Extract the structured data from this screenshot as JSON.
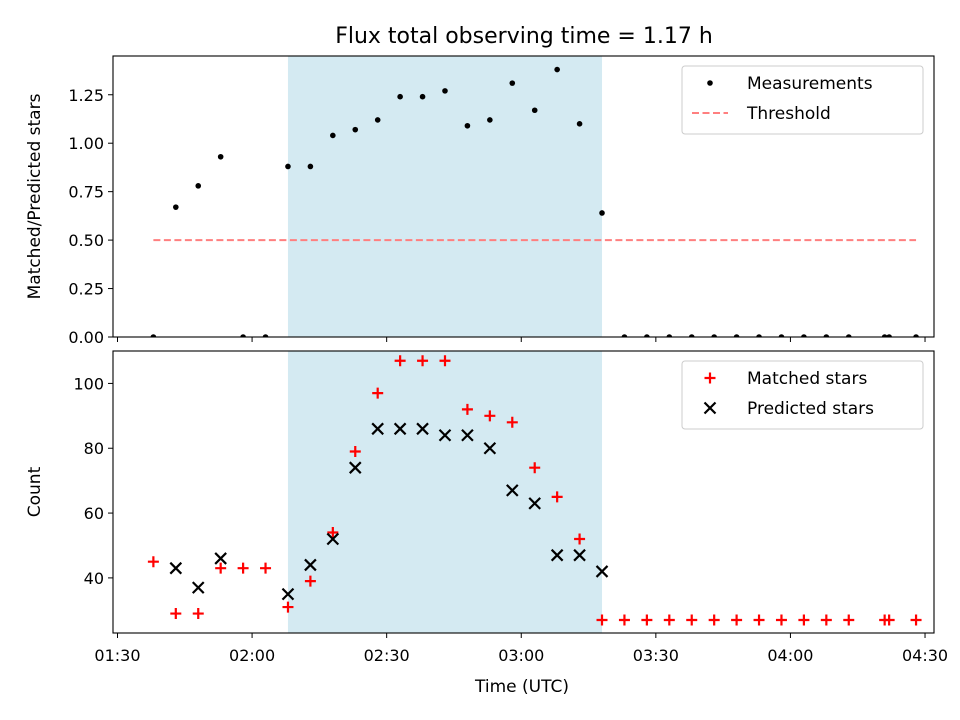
{
  "chart_data": {
    "title": "Flux total observing time = 1.17 h",
    "xlabel": "Time (UTC)",
    "xlim": [
      "01:29",
      "04:32"
    ],
    "x_ticks": [
      "01:30",
      "02:00",
      "02:30",
      "03:00",
      "03:30",
      "04:00",
      "04:30"
    ],
    "shaded_interval": {
      "start": "02:08",
      "end": "03:18",
      "color": "#add8e6"
    },
    "panels": [
      {
        "type": "scatter",
        "ylabel": "Matched/Predicted stars",
        "ylim": [
          0,
          1.45
        ],
        "y_ticks": [
          "0.00",
          "0.25",
          "0.50",
          "0.75",
          "1.00",
          "1.25"
        ],
        "legend_position": "upper right",
        "series": [
          {
            "name": "Measurements",
            "marker": "dot",
            "color": "#000000",
            "points": [
              [
                "01:38",
                0
              ],
              [
                "01:43",
                0.67
              ],
              [
                "01:48",
                0.78
              ],
              [
                "01:53",
                0.93
              ],
              [
                "01:58",
                0
              ],
              [
                "02:03",
                0
              ],
              [
                "02:08",
                0.88
              ],
              [
                "02:13",
                0.88
              ],
              [
                "02:18",
                1.04
              ],
              [
                "02:23",
                1.07
              ],
              [
                "02:28",
                1.12
              ],
              [
                "02:33",
                1.24
              ],
              [
                "02:38",
                1.24
              ],
              [
                "02:43",
                1.27
              ],
              [
                "02:48",
                1.09
              ],
              [
                "02:53",
                1.12
              ],
              [
                "02:58",
                1.31
              ],
              [
                "03:03",
                1.17
              ],
              [
                "03:08",
                1.38
              ],
              [
                "03:13",
                1.1
              ],
              [
                "03:18",
                0.64
              ],
              [
                "03:23",
                0
              ],
              [
                "03:28",
                0
              ],
              [
                "03:33",
                0
              ],
              [
                "03:38",
                0
              ],
              [
                "03:43",
                0
              ],
              [
                "03:48",
                0
              ],
              [
                "03:53",
                0
              ],
              [
                "03:58",
                0
              ],
              [
                "04:03",
                0
              ],
              [
                "04:08",
                0
              ],
              [
                "04:13",
                0
              ],
              [
                "04:21",
                0
              ],
              [
                "04:22",
                0
              ],
              [
                "04:28",
                0
              ]
            ]
          },
          {
            "name": "Threshold",
            "type": "line",
            "style": "dashed",
            "color": "#ff7f7f",
            "points": [
              [
                "01:38",
                0.5
              ],
              [
                "04:28",
                0.5
              ]
            ]
          }
        ]
      },
      {
        "type": "scatter",
        "ylabel": "Count",
        "ylim": [
          23,
          110
        ],
        "y_ticks": [
          "40",
          "60",
          "80",
          "100"
        ],
        "legend_position": "upper right",
        "series": [
          {
            "name": "Matched stars",
            "marker": "plus",
            "color": "#ff0000",
            "points": [
              [
                "01:38",
                45
              ],
              [
                "01:43",
                29
              ],
              [
                "01:48",
                29
              ],
              [
                "01:53",
                43
              ],
              [
                "01:58",
                43
              ],
              [
                "02:03",
                43
              ],
              [
                "02:08",
                31
              ],
              [
                "02:13",
                39
              ],
              [
                "02:18",
                54
              ],
              [
                "02:23",
                79
              ],
              [
                "02:28",
                97
              ],
              [
                "02:33",
                107
              ],
              [
                "02:38",
                107
              ],
              [
                "02:43",
                107
              ],
              [
                "02:48",
                92
              ],
              [
                "02:53",
                90
              ],
              [
                "02:58",
                88
              ],
              [
                "03:03",
                74
              ],
              [
                "03:08",
                65
              ],
              [
                "03:13",
                52
              ],
              [
                "03:18",
                27
              ],
              [
                "03:23",
                27
              ],
              [
                "03:28",
                27
              ],
              [
                "03:33",
                27
              ],
              [
                "03:38",
                27
              ],
              [
                "03:43",
                27
              ],
              [
                "03:48",
                27
              ],
              [
                "03:53",
                27
              ],
              [
                "03:58",
                27
              ],
              [
                "04:03",
                27
              ],
              [
                "04:08",
                27
              ],
              [
                "04:13",
                27
              ],
              [
                "04:21",
                27
              ],
              [
                "04:22",
                27
              ],
              [
                "04:28",
                27
              ]
            ]
          },
          {
            "name": "Predicted stars",
            "marker": "x",
            "color": "#000000",
            "points": [
              [
                "01:43",
                43
              ],
              [
                "01:48",
                37
              ],
              [
                "01:53",
                46
              ],
              [
                "02:08",
                35
              ],
              [
                "02:13",
                44
              ],
              [
                "02:18",
                52
              ],
              [
                "02:23",
                74
              ],
              [
                "02:28",
                86
              ],
              [
                "02:33",
                86
              ],
              [
                "02:38",
                86
              ],
              [
                "02:43",
                84
              ],
              [
                "02:48",
                84
              ],
              [
                "02:53",
                80
              ],
              [
                "02:58",
                67
              ],
              [
                "03:03",
                63
              ],
              [
                "03:08",
                47
              ],
              [
                "03:13",
                47
              ],
              [
                "03:18",
                42
              ]
            ]
          }
        ]
      }
    ]
  }
}
